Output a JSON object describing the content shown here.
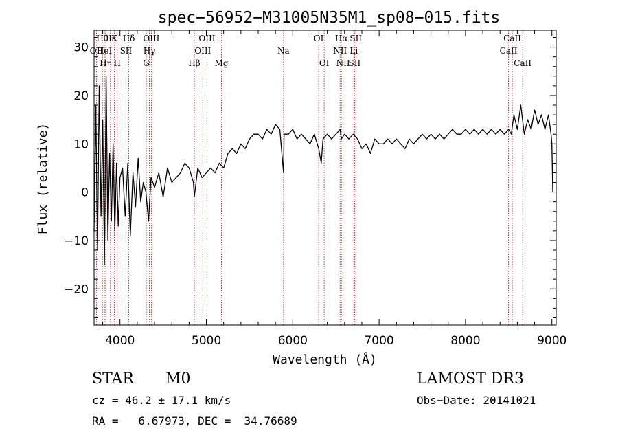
{
  "chart_data": {
    "type": "line",
    "title": "spec−56952−M31005N35M1_sp08−015.fits",
    "xlabel": "Wavelength (Å)",
    "ylabel": "Flux (relative)",
    "xlim": [
      3700,
      9050
    ],
    "ylim": [
      -27.5,
      33.5
    ],
    "x_ticks": [
      4000,
      5000,
      6000,
      7000,
      8000,
      9000
    ],
    "x_tick_labels": [
      "4000",
      "5000",
      "6000",
      "7000",
      "8000",
      "9000"
    ],
    "y_ticks": [
      -20,
      -10,
      0,
      10,
      20,
      30
    ],
    "y_tick_labels": [
      "−20",
      "−10",
      "0",
      "10",
      "20",
      "30"
    ],
    "line_color": "#000000",
    "marker_color": "#b03030",
    "series": [
      {
        "name": "flux",
        "x": [
          3700,
          3720,
          3740,
          3760,
          3780,
          3800,
          3820,
          3840,
          3860,
          3880,
          3900,
          3920,
          3940,
          3960,
          3980,
          4000,
          4030,
          4060,
          4090,
          4120,
          4150,
          4180,
          4210,
          4240,
          4270,
          4300,
          4330,
          4360,
          4400,
          4450,
          4500,
          4550,
          4600,
          4650,
          4700,
          4750,
          4800,
          4850,
          4861,
          4900,
          4950,
          5000,
          5050,
          5100,
          5150,
          5200,
          5250,
          5300,
          5350,
          5400,
          5450,
          5500,
          5550,
          5600,
          5650,
          5700,
          5750,
          5800,
          5850,
          5893,
          5900,
          5950,
          6000,
          6050,
          6100,
          6150,
          6200,
          6250,
          6300,
          6330,
          6350,
          6400,
          6450,
          6500,
          6550,
          6563,
          6600,
          6650,
          6700,
          6750,
          6800,
          6850,
          6900,
          6950,
          7000,
          7050,
          7100,
          7150,
          7200,
          7250,
          7300,
          7350,
          7400,
          7450,
          7500,
          7550,
          7600,
          7650,
          7700,
          7750,
          7800,
          7850,
          7900,
          7950,
          8000,
          8050,
          8100,
          8150,
          8200,
          8250,
          8300,
          8350,
          8400,
          8450,
          8500,
          8530,
          8560,
          8600,
          8640,
          8680,
          8720,
          8760,
          8800,
          8840,
          8880,
          8920,
          8960,
          8990,
          9000,
          9010
        ],
        "y": [
          -8,
          18,
          -12,
          22,
          -5,
          15,
          -15,
          24,
          -10,
          8,
          -6,
          10,
          -8,
          6,
          -7,
          3,
          5,
          -5,
          6,
          -9,
          4,
          -3,
          7,
          -2,
          2,
          0,
          -6,
          3,
          1,
          4,
          -1,
          5,
          2,
          3,
          4,
          6,
          5,
          2,
          -1,
          5,
          3,
          4,
          5,
          4,
          6,
          5,
          8,
          9,
          8,
          10,
          9,
          11,
          12,
          12,
          11,
          13,
          12,
          14,
          13,
          4,
          12,
          12,
          13,
          11,
          12,
          11,
          10,
          12,
          9,
          6,
          11,
          12,
          11,
          12,
          13,
          11,
          12,
          11,
          12,
          11,
          9,
          10,
          8,
          11,
          10,
          10,
          11,
          10,
          11,
          10,
          9,
          11,
          10,
          11,
          12,
          11,
          12,
          11,
          12,
          11,
          12,
          13,
          12,
          12,
          13,
          12,
          13,
          12,
          13,
          12,
          13,
          12,
          13,
          12,
          13,
          12,
          16,
          13,
          18,
          12,
          15,
          13,
          17,
          14,
          16,
          13,
          16,
          12,
          10,
          0
        ],
        "drawn_pairs": [
          [
            3700,
            -8
          ],
          [
            3720,
            18
          ],
          [
            3740,
            -12
          ],
          [
            3760,
            22
          ],
          [
            3780,
            -5
          ],
          [
            3800,
            15
          ],
          [
            3820,
            -15
          ],
          [
            3840,
            24
          ],
          [
            3860,
            -10
          ],
          [
            3880,
            8
          ],
          [
            3900,
            -6
          ],
          [
            3920,
            10
          ],
          [
            3940,
            -8
          ],
          [
            3960,
            6
          ],
          [
            3980,
            -7
          ],
          [
            4000,
            3
          ],
          [
            4030,
            5
          ],
          [
            4060,
            -5
          ],
          [
            4090,
            6
          ],
          [
            4120,
            -9
          ],
          [
            4150,
            4
          ],
          [
            4180,
            -3
          ],
          [
            4210,
            7
          ],
          [
            4240,
            -2
          ],
          [
            4270,
            2
          ],
          [
            4300,
            0
          ],
          [
            4330,
            -6
          ],
          [
            4360,
            3
          ],
          [
            4400,
            1
          ],
          [
            4450,
            4
          ],
          [
            4500,
            -1
          ],
          [
            4550,
            5
          ],
          [
            4600,
            2
          ],
          [
            4650,
            3
          ],
          [
            4700,
            4
          ],
          [
            4750,
            6
          ],
          [
            4800,
            5
          ],
          [
            4850,
            2
          ],
          [
            4861,
            -1
          ],
          [
            4900,
            5
          ],
          [
            4950,
            3
          ],
          [
            5000,
            4
          ],
          [
            5050,
            5
          ],
          [
            5100,
            4
          ],
          [
            5150,
            6
          ],
          [
            5200,
            5
          ],
          [
            5250,
            8
          ],
          [
            5300,
            9
          ],
          [
            5350,
            8
          ],
          [
            5400,
            10
          ],
          [
            5450,
            9
          ],
          [
            5500,
            11
          ],
          [
            5550,
            12
          ],
          [
            5600,
            12
          ],
          [
            5650,
            11
          ],
          [
            5700,
            13
          ],
          [
            5750,
            12
          ],
          [
            5800,
            14
          ],
          [
            5850,
            13
          ],
          [
            5893,
            4
          ],
          [
            5900,
            12
          ],
          [
            5950,
            12
          ],
          [
            6000,
            13
          ],
          [
            6050,
            11
          ],
          [
            6100,
            12
          ],
          [
            6150,
            11
          ],
          [
            6200,
            10
          ],
          [
            6250,
            12
          ],
          [
            6300,
            9
          ],
          [
            6330,
            6
          ],
          [
            6350,
            11
          ],
          [
            6400,
            12
          ],
          [
            6450,
            11
          ],
          [
            6500,
            12
          ],
          [
            6550,
            13
          ],
          [
            6563,
            11
          ],
          [
            6600,
            12
          ],
          [
            6650,
            11
          ],
          [
            6700,
            12
          ],
          [
            6750,
            11
          ],
          [
            6800,
            9
          ],
          [
            6850,
            10
          ],
          [
            6900,
            8
          ],
          [
            6950,
            11
          ],
          [
            7000,
            10
          ],
          [
            7050,
            10
          ],
          [
            7100,
            11
          ],
          [
            7150,
            10
          ],
          [
            7200,
            11
          ],
          [
            7250,
            10
          ],
          [
            7300,
            9
          ],
          [
            7350,
            11
          ],
          [
            7400,
            10
          ],
          [
            7450,
            11
          ],
          [
            7500,
            12
          ],
          [
            7550,
            11
          ],
          [
            7600,
            12
          ],
          [
            7650,
            11
          ],
          [
            7700,
            12
          ],
          [
            7750,
            11
          ],
          [
            7800,
            12
          ],
          [
            7850,
            13
          ],
          [
            7900,
            12
          ],
          [
            7950,
            12
          ],
          [
            8000,
            13
          ],
          [
            8050,
            12
          ],
          [
            8100,
            13
          ],
          [
            8150,
            12
          ],
          [
            8200,
            13
          ],
          [
            8250,
            12
          ],
          [
            8300,
            13
          ],
          [
            8350,
            12
          ],
          [
            8400,
            13
          ],
          [
            8450,
            12
          ],
          [
            8500,
            13
          ],
          [
            8530,
            12
          ],
          [
            8560,
            16
          ],
          [
            8600,
            13
          ],
          [
            8640,
            18
          ],
          [
            8680,
            12
          ],
          [
            8720,
            15
          ],
          [
            8760,
            13
          ],
          [
            8800,
            17
          ],
          [
            8840,
            14
          ],
          [
            8880,
            16
          ],
          [
            8920,
            13
          ],
          [
            8960,
            16
          ],
          [
            8990,
            12
          ],
          [
            9000,
            10
          ],
          [
            9010,
            0
          ]
        ]
      }
    ],
    "line_markers": [
      {
        "label": "OII",
        "wavelength": 3727,
        "row": 1
      },
      {
        "label": "Hθ",
        "wavelength": 3797,
        "row": 0
      },
      {
        "label": "HeI",
        "wavelength": 3820,
        "row": 1
      },
      {
        "label": "Hη",
        "wavelength": 3835,
        "row": 2
      },
      {
        "label": "Hε",
        "wavelength": 3889,
        "row": 0
      },
      {
        "label": "K",
        "wavelength": 3934,
        "row": 0
      },
      {
        "label": "H",
        "wavelength": 3968,
        "row": 2
      },
      {
        "label": "SII",
        "wavelength": 4069,
        "row": 1
      },
      {
        "label": "Hδ",
        "wavelength": 4102,
        "row": 0
      },
      {
        "label": "G",
        "wavelength": 4305,
        "row": 2
      },
      {
        "label": "Hγ",
        "wavelength": 4340,
        "row": 1
      },
      {
        "label": "OIII",
        "wavelength": 4363,
        "row": 0
      },
      {
        "label": "Hβ",
        "wavelength": 4861,
        "row": 2
      },
      {
        "label": "OIII",
        "wavelength": 4959,
        "row": 1
      },
      {
        "label": "OIII",
        "wavelength": 5007,
        "row": 0
      },
      {
        "label": "Mg",
        "wavelength": 5175,
        "row": 2
      },
      {
        "label": "Na",
        "wavelength": 5893,
        "row": 1
      },
      {
        "label": "OI",
        "wavelength": 6300,
        "row": 0
      },
      {
        "label": "OI",
        "wavelength": 6364,
        "row": 2
      },
      {
        "label": "NII",
        "wavelength": 6548,
        "row": 1
      },
      {
        "label": "Hα",
        "wavelength": 6563,
        "row": 0
      },
      {
        "label": "NII",
        "wavelength": 6583,
        "row": 2
      },
      {
        "label": "Li",
        "wavelength": 6707,
        "row": 1
      },
      {
        "label": "SII",
        "wavelength": 6716,
        "row": 2
      },
      {
        "label": "SII",
        "wavelength": 6731,
        "row": 0
      },
      {
        "label": "CaII",
        "wavelength": 8498,
        "row": 1
      },
      {
        "label": "CaII",
        "wavelength": 8542,
        "row": 0
      },
      {
        "label": "CaII",
        "wavelength": 8662,
        "row": 2
      }
    ]
  },
  "info": {
    "class_label": "STAR",
    "subclass_label": "M0",
    "survey": "LAMOST DR3",
    "redshift": "cz = 46.2 ± 17.1 km/s",
    "obs_date": "Obs−Date: 20141021",
    "coords": "RA =   6.67973, DEC =  34.76689"
  }
}
